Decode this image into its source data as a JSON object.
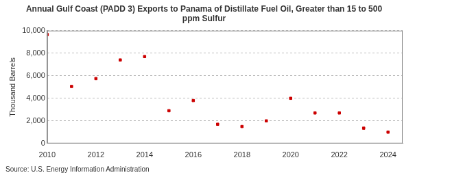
{
  "chart_data": {
    "type": "scatter",
    "title": [
      "Annual Gulf Coast (PADD 3) Exports to Panama of Distillate Fuel Oil, Greater than 15 to 500",
      "ppm Sulfur"
    ],
    "y_label": "Thousand Barrels",
    "source": "Source: U.S. Energy Information Administration",
    "x": [
      2010,
      2011,
      2012,
      2013,
      2014,
      2015,
      2016,
      2017,
      2018,
      2019,
      2020,
      2021,
      2022,
      2023,
      2024
    ],
    "values": [
      9650,
      5050,
      5750,
      7400,
      7700,
      2900,
      3800,
      1700,
      1500,
      2000,
      4000,
      2700,
      2700,
      1350,
      1000
    ],
    "color": "#cc0000",
    "marker": "square",
    "xlim": [
      2010,
      2024.6
    ],
    "xticks": [
      2010,
      2012,
      2014,
      2016,
      2018,
      2020,
      2022,
      2024
    ],
    "ylim": [
      0,
      10000
    ],
    "yticks": [
      0,
      {
        "value": 2000,
        "label": "2,000"
      },
      {
        "value": 4000,
        "label": "4,000"
      },
      {
        "value": 6000,
        "label": "6,000"
      },
      {
        "value": 8000,
        "label": "8,000"
      },
      {
        "value": 10000,
        "label": "10,000"
      }
    ],
    "grid": true
  }
}
